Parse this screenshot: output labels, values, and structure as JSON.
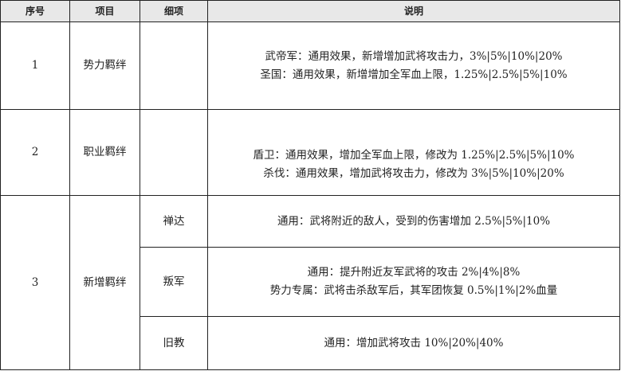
{
  "headers": [
    "序号",
    "项目",
    "细项",
    "说明"
  ],
  "rows": [
    {
      "no": "1",
      "item": "势力羁绊",
      "sub": "",
      "lines": [
        "武帝军：通用效果，新增增加武将攻击力，3%|5%|10%|20%",
        "圣国：通用效果，新增增加全军血上限，1.25%|2.5%|5%|10%"
      ]
    },
    {
      "no": "2",
      "item": "职业羁绊",
      "sub": "",
      "lines": [
        "盾卫：通用效果，增加全军血上限，修改为 1.25%|2.5%|5%|10%",
        "杀伐：通用效果，增加武将攻击力，修改为 3%|5%|10%|20%"
      ]
    },
    {
      "no": "3",
      "item": "新增羁绊",
      "subs": [
        {
          "sub": "禅达",
          "lines": [
            "通用：武将附近的敌人，受到的伤害增加 2.5%|5%|10%"
          ]
        },
        {
          "sub": "叛军",
          "lines": [
            "通用：提升附近友军武将的攻击 2%|4%|8%",
            "势力专属：武将击杀敌军后，其军团恢复 0.5%|1%|2%血量"
          ]
        },
        {
          "sub": "旧教",
          "lines": [
            "通用：增加武将攻击 10%|20%|40%"
          ]
        }
      ]
    }
  ]
}
